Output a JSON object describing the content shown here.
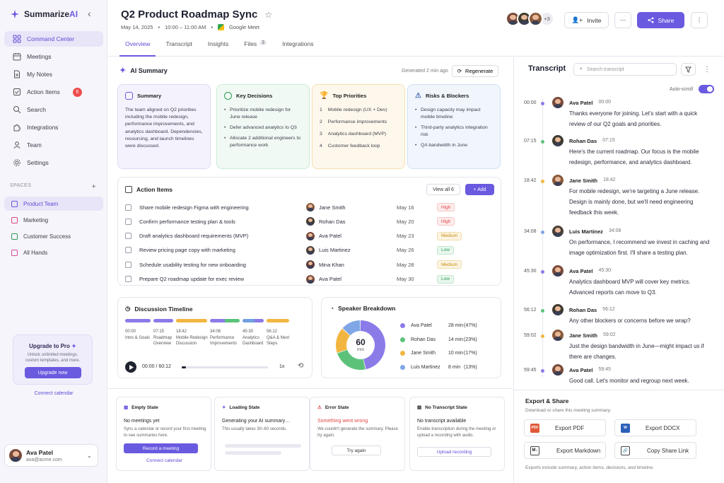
{
  "app": {
    "name_prefix": "Summarize",
    "name_suffix": "AI"
  },
  "colors": {
    "accent": "#6a5ae0",
    "high": "#e04646",
    "medium": "#c98b12",
    "low": "#2f9c55"
  },
  "sidebar": {
    "nav": [
      {
        "label": "Command Center",
        "icon": "grid-icon",
        "active": true
      },
      {
        "label": "Meetings",
        "icon": "calendar-icon"
      },
      {
        "label": "My Notes",
        "icon": "document-icon"
      },
      {
        "label": "Action Items",
        "icon": "checkbox-icon",
        "badge": "6"
      },
      {
        "label": "Search",
        "icon": "search-icon"
      },
      {
        "label": "Integrations",
        "icon": "puzzle-icon"
      },
      {
        "label": "Team",
        "icon": "people-icon"
      },
      {
        "label": "Settings",
        "icon": "gear-icon"
      }
    ],
    "spaces_label": "SPACES",
    "spaces_add": "+",
    "spaces": [
      {
        "label": "Product Team",
        "color": "#6a5ae0",
        "active": true
      },
      {
        "label": "Marketing",
        "color": "#e04680"
      },
      {
        "label": "Customer Success",
        "color": "#2f9c55"
      },
      {
        "label": "All Hands",
        "color": "#d94a9a"
      }
    ],
    "upgrade": {
      "title": "Upgrade to Pro",
      "desc": "Unlock unlimited meetings, custom templates, and more.",
      "button": "Upgrade now"
    },
    "connect_calendar": "Connect calendar",
    "user": {
      "name": "Ava Patel",
      "email": "ava@acme.com"
    }
  },
  "header": {
    "title": "Q2 Product Roadmap Sync",
    "date": "May 14, 2025",
    "time": "10:00 – 11:00 AM",
    "platform": "Google Meet",
    "tabs": [
      {
        "label": "Overview",
        "active": true
      },
      {
        "label": "Transcript"
      },
      {
        "label": "Insights"
      },
      {
        "label": "Files",
        "count": "3"
      },
      {
        "label": "Integrations"
      }
    ],
    "participants_more": "+3",
    "invite": "Invite",
    "share": "Share"
  },
  "summary": {
    "title": "AI Summary",
    "generated": "Generated 2 min ago",
    "regenerate": "Regenerate",
    "cards": {
      "summary": {
        "title": "Summary",
        "text": "The team aligned on Q2 priorities including the mobile redesign, performance improvements, and analytics dashboard. Dependencies, resourcing, and launch timelines were discussed."
      },
      "decisions": {
        "title": "Key Decisions",
        "items": [
          "Prioritize mobile redesign for June release",
          "Defer advanced analytics to Q3",
          "Allocate 2 additional engineers to performance work"
        ]
      },
      "priorities": {
        "title": "Top Priorities",
        "items": [
          "Mobile redesign (UX + Dev)",
          "Performance improvements",
          "Analytics dashboard (MVP)",
          "Customer feedback loop"
        ]
      },
      "risks": {
        "title": "Risks & Blockers",
        "items": [
          "Design capacity may impact mobile timeline",
          "Third-party analytics integration risk",
          "QA bandwidth in June"
        ]
      }
    }
  },
  "actions": {
    "title": "Action Items",
    "view_all": "View all 6",
    "add": "Add",
    "rows": [
      {
        "task": "Share mobile redesign Figma with engineering",
        "owner": "Jane Smith",
        "date": "May 16",
        "priority": "High"
      },
      {
        "task": "Confirm performance testing plan & tools",
        "owner": "Rohan Das",
        "date": "May 20",
        "priority": "High"
      },
      {
        "task": "Draft analytics dashboard requirements (MVP)",
        "owner": "Ava Patel",
        "date": "May 23",
        "priority": "Medium"
      },
      {
        "task": "Review pricing page copy with marketing",
        "owner": "Luis Martinez",
        "date": "May 26",
        "priority": "Low"
      },
      {
        "task": "Schedule usability testing for new onboarding",
        "owner": "Mina Khan",
        "date": "May 28",
        "priority": "Medium"
      },
      {
        "task": "Prepare Q2 roadmap update for exec review",
        "owner": "Ava Patel",
        "date": "May 30",
        "priority": "Low"
      }
    ]
  },
  "timeline": {
    "title": "Discussion Timeline",
    "segments": [
      {
        "time": "00:00",
        "label": "Intro & Goals",
        "color": "#8b7be8"
      },
      {
        "time": "07:15",
        "label": "Roadmap Overview",
        "color": "#8b7be8"
      },
      {
        "time": "18:42",
        "label": "Mobile Redesign Discussion",
        "color": "#f2b640"
      },
      {
        "time": "34:08",
        "label": "Performance Improvements",
        "color": "#8b7be8"
      },
      {
        "time": "45:30",
        "label": "Analytics Dashboard",
        "color": "#6fa0e0"
      },
      {
        "time": "56:12",
        "label": "Q&A & Next Steps",
        "color": "#f2b640"
      }
    ],
    "current": "00:00",
    "total": "/ 60:12",
    "speed": "1x",
    "progress": 0.05
  },
  "speakers": {
    "title": "Speaker Breakdown",
    "total": "60",
    "unit": "min",
    "rows": [
      {
        "name": "Ava Patel",
        "minutes": "28 min",
        "pct": "(47%)",
        "value": 47,
        "color": "#8b7be8"
      },
      {
        "name": "Rohan Das",
        "minutes": "14 min",
        "pct": "(23%)",
        "value": 23,
        "color": "#5cc27a"
      },
      {
        "name": "Jane Smith",
        "minutes": "10 min",
        "pct": "(17%)",
        "value": 17,
        "color": "#f2b640"
      },
      {
        "name": "Luis Martinez",
        "minutes": "8 min",
        "pct": "(13%)",
        "value": 13,
        "color": "#7fa6e6"
      }
    ]
  },
  "states": {
    "empty": {
      "h": "Empty State",
      "t": "No meetings yet",
      "d": "Sync a calendar or record your first meeting to see summaries here.",
      "b": "Record a meeting",
      "link": "Connect calendar"
    },
    "loading": {
      "h": "Loading State",
      "t": "Generating your AI summary…",
      "d": "This usually takes 30–60 seconds."
    },
    "error": {
      "h": "Error State",
      "t": "Something went wrong",
      "d": "We couldn't generate the summary. Please try again.",
      "b": "Try again"
    },
    "notranscript": {
      "h": "No Transcript State",
      "t": "No transcript available",
      "d": "Enable transcription during the meeting or upload a recording with audio.",
      "b": "Upload recording"
    }
  },
  "transcript": {
    "title": "Transcript",
    "search_placeholder": "Search transcript",
    "autoscroll": "Auto-scroll",
    "entries": [
      {
        "ts": "00:00",
        "speaker": "Ava Patel",
        "st": "00:00",
        "color": "#8b7be8",
        "text": "Thanks everyone for joining. Let's start with a quick review of our Q2 goals and priorities."
      },
      {
        "ts": "07:15",
        "speaker": "Rohan Das",
        "st": "07:15",
        "color": "#5cc27a",
        "text": "Here's the current roadmap. Our focus is the mobile redesign, performance, and analytics dashboard."
      },
      {
        "ts": "18:42",
        "speaker": "Jane Smith",
        "st": "18:42",
        "color": "#f2b640",
        "text": "For mobile redesign, we're targeting a June release. Design is mainly done, but we'll need engineering feedback this week."
      },
      {
        "ts": "34:08",
        "speaker": "Luis Martinez",
        "st": "34:08",
        "color": "#7fa6e6",
        "text": "On performance, I recommend we invest in caching and image optimization first. I'll share a testing plan."
      },
      {
        "ts": "45:30",
        "speaker": "Ava Patel",
        "st": "45:30",
        "color": "#8b7be8",
        "text": "Analytics dashboard MVP will cover key metrics. Advanced reports can move to Q3."
      },
      {
        "ts": "56:12",
        "speaker": "Rohan Das",
        "st": "56:12",
        "color": "#5cc27a",
        "text": "Any other blockers or concerns before we wrap?"
      },
      {
        "ts": "59:02",
        "speaker": "Jane Smith",
        "st": "59:02",
        "color": "#f2b640",
        "text": "Just the design bandwidth in June—might impact us if there are changes."
      },
      {
        "ts": "59:45",
        "speaker": "Ava Patel",
        "st": "59:45",
        "color": "#8b7be8",
        "text": "Good call. Let's monitor and regroup next week."
      }
    ]
  },
  "export": {
    "title": "Export & Share",
    "subtitle": "Download or share this meeting summary.",
    "buttons": [
      "Export PDF",
      "Export DOCX",
      "Export Markdown",
      "Copy Share Link"
    ],
    "icon_labels": [
      "PDF",
      "W",
      "M↓",
      "🔗"
    ],
    "footer": "Exports include summary, action items, decisions, and timeline."
  }
}
